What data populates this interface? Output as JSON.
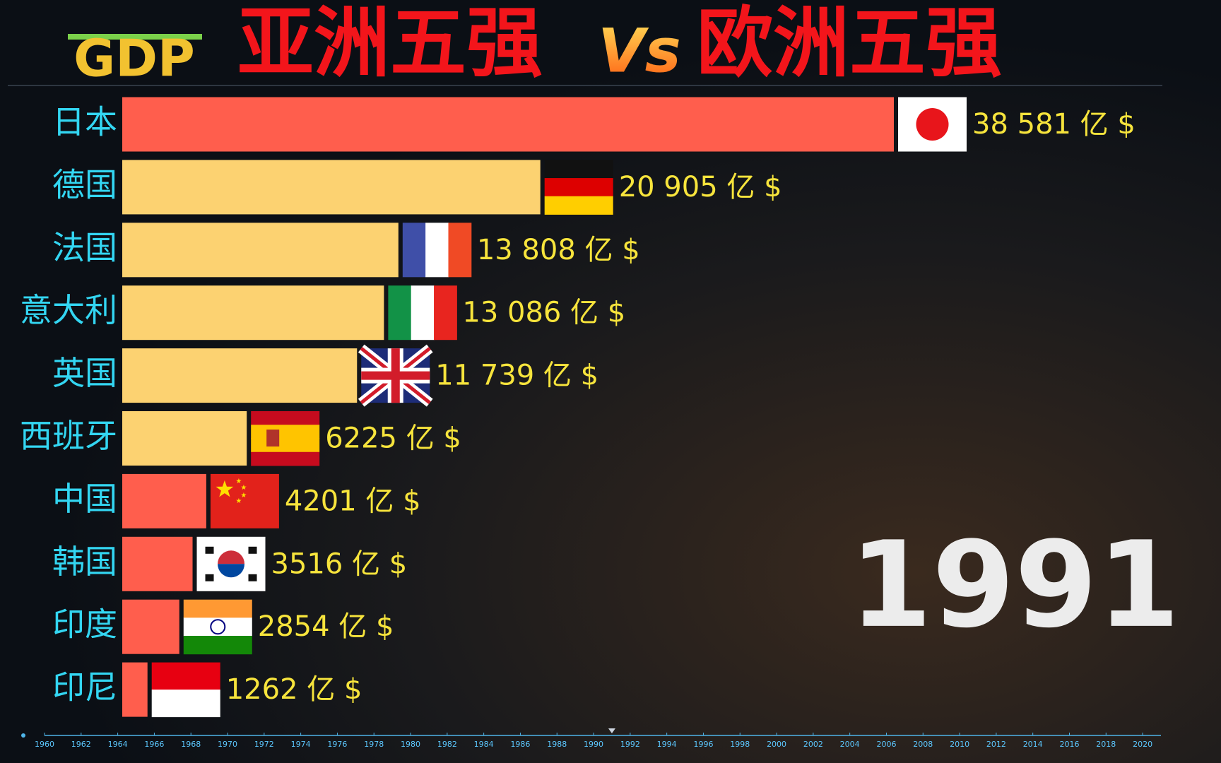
{
  "chart_data": {
    "type": "bar",
    "orientation": "horizontal",
    "logo": "GDP",
    "title": "亚洲五强",
    "title_vs": "Vs",
    "title_right": "欧洲五强",
    "categories": [
      "日本",
      "德国",
      "法国",
      "意大利",
      "英国",
      "西班牙",
      "中国",
      "韩国",
      "印度",
      "印尼"
    ],
    "values": [
      38581,
      20905,
      13808,
      13086,
      11739,
      6225,
      4201,
      3516,
      2854,
      1262
    ],
    "value_labels": [
      "38 581 亿 $",
      "20 905 亿 $",
      "13 808 亿 $",
      "13 086 亿 $",
      "11 739 亿 $",
      "6225 亿 $",
      "4201 亿 $",
      "3516 亿 $",
      "2854 亿 $",
      "1262 亿 $"
    ],
    "colors": [
      "#ff5e4d",
      "#fcd271",
      "#fcd271",
      "#fcd271",
      "#fcd271",
      "#fcd271",
      "#ff5e4d",
      "#ff5e4d",
      "#ff5e4d",
      "#ff5e4d"
    ],
    "xlim": [
      0,
      38581
    ],
    "year": 1991,
    "timeline": {
      "xlim": [
        1960,
        2021
      ],
      "ticks": [
        1960,
        1962,
        1964,
        1966,
        1968,
        1970,
        1972,
        1974,
        1976,
        1978,
        1980,
        1982,
        1984,
        1986,
        1988,
        1990,
        1992,
        1994,
        1996,
        1998,
        2000,
        2002,
        2004,
        2006,
        2008,
        2010,
        2012,
        2014,
        2016,
        2018,
        2020
      ]
    }
  }
}
